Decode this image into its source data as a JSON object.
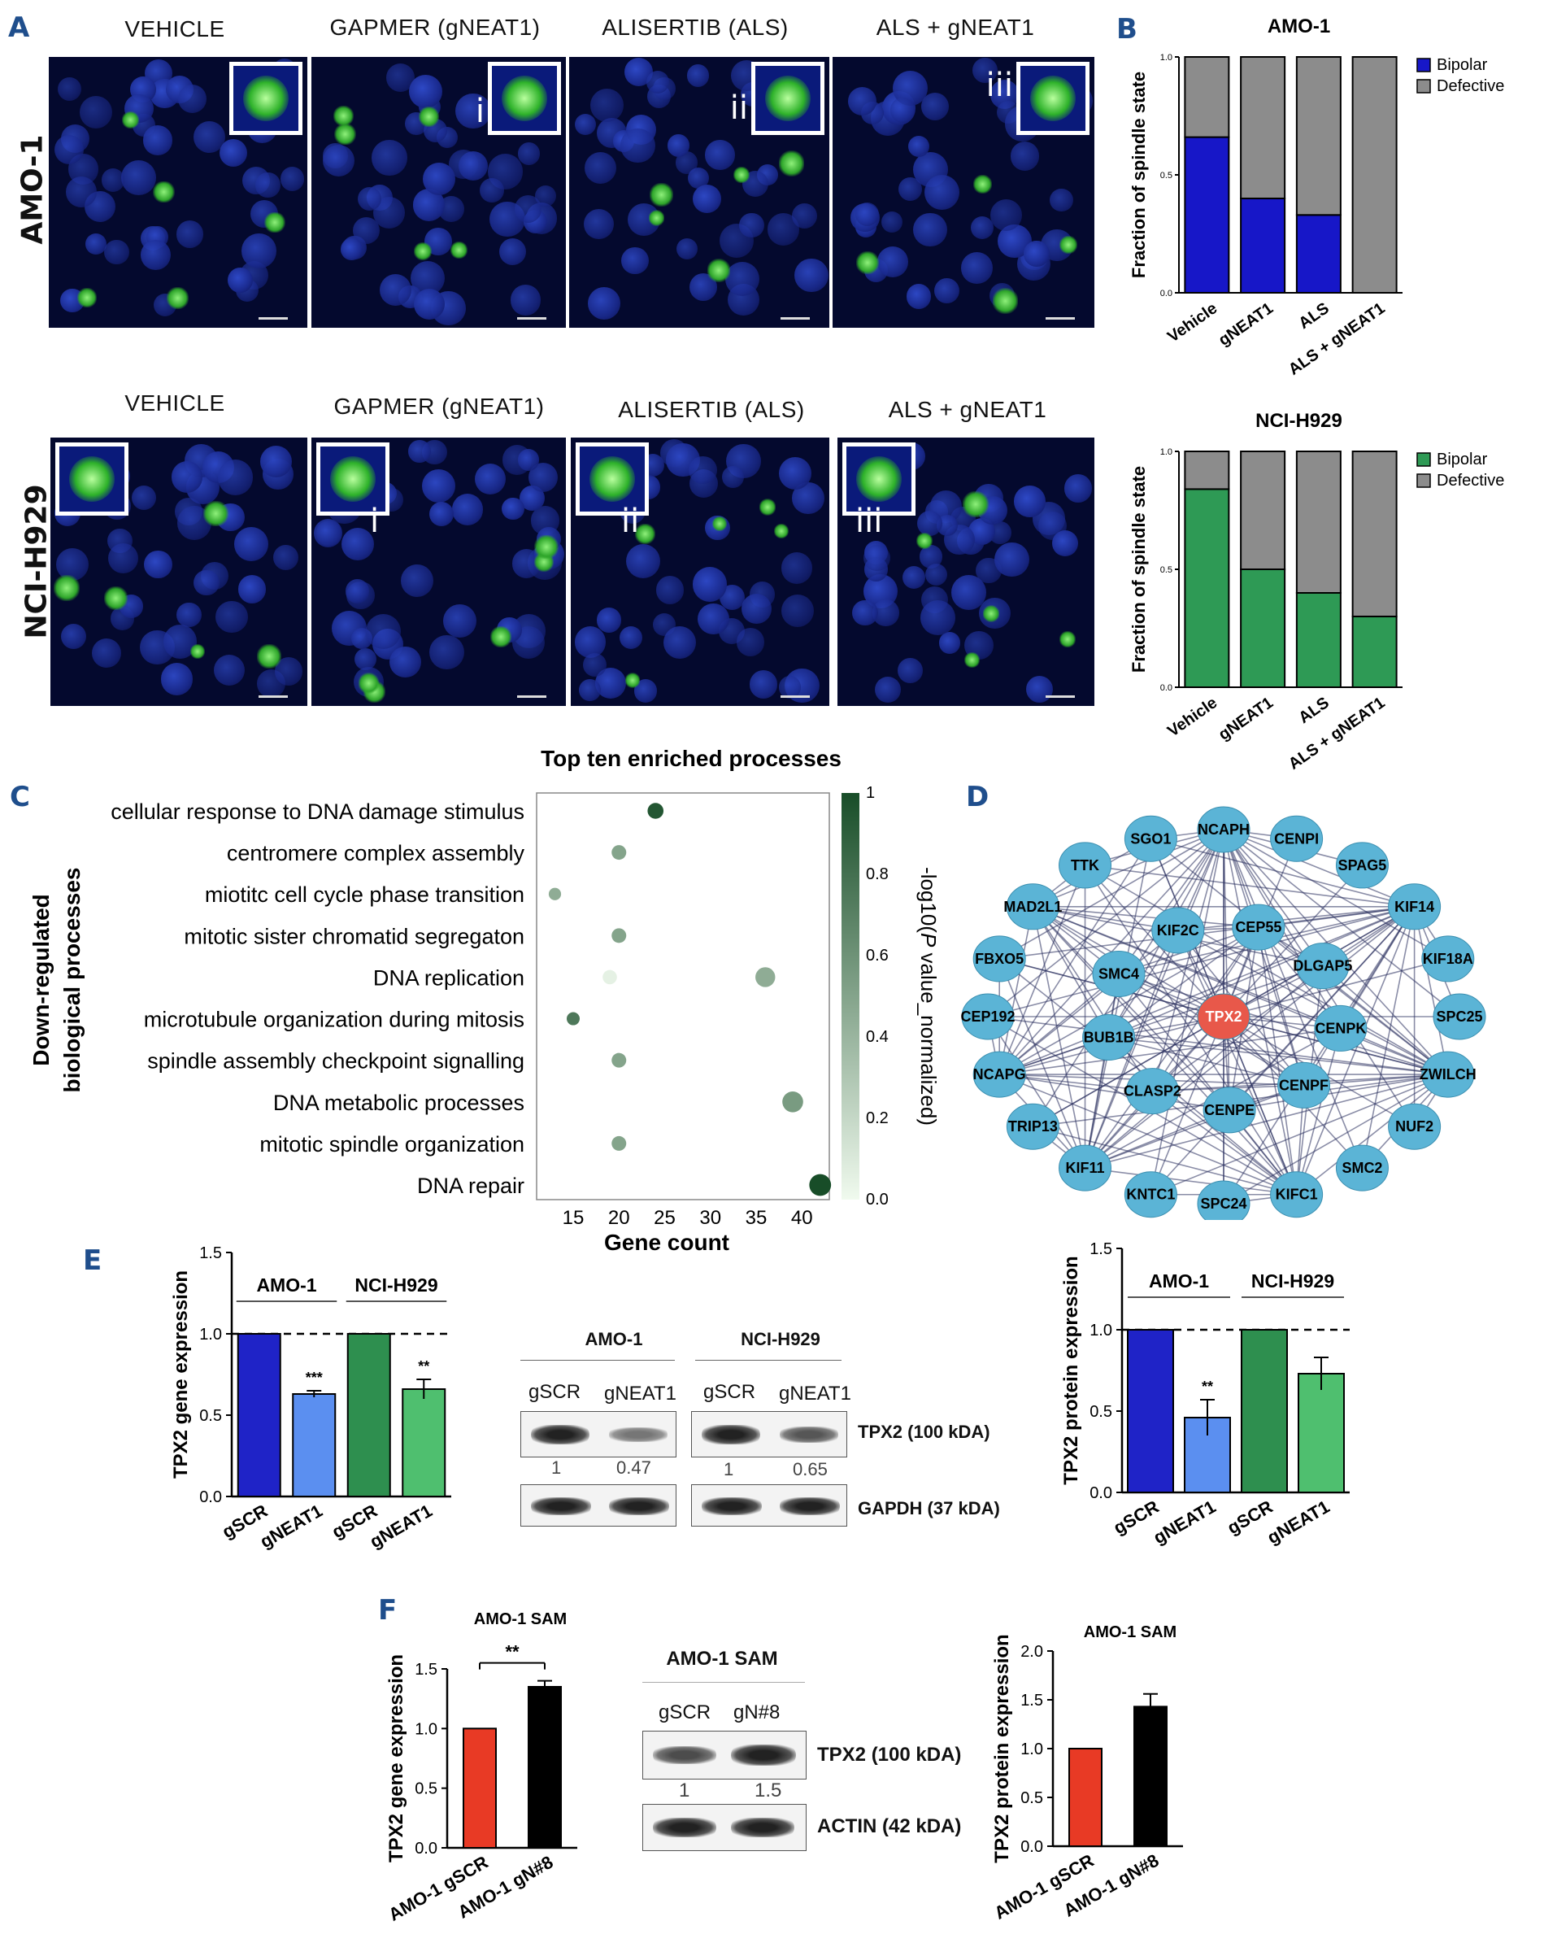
{
  "panelA": {
    "label": "A",
    "columns_top": [
      "VEHICLE",
      "GAPMER (gNEAT1)",
      "ALISERTIB (ALS)",
      "ALS + gNEAT1"
    ],
    "columns_bottom": [
      "VEHICLE",
      "GAPMER (gNEAT1)",
      "ALISERTIB (ALS)",
      "ALS + gNEAT1"
    ],
    "row_top": "AMO-1",
    "row_bottom": "NCI-H929",
    "romans": [
      "i",
      "ii",
      "iii"
    ]
  },
  "panelB": {
    "label": "B",
    "legend_bipolar": "Bipolar",
    "legend_defective": "Defective"
  },
  "panelC": {
    "label": "C",
    "ylabel_line1": "Down-regulated",
    "ylabel_line2": "biological processes"
  },
  "panelD": {
    "label": "D",
    "nodes": [
      "NCAPH",
      "CENPI",
      "SPAG5",
      "KIF14",
      "KIF18A",
      "SPC25",
      "ZWILCH",
      "NUF2",
      "SMC2",
      "KIFC1",
      "SPC24",
      "KNTC1",
      "KIF11",
      "TPX2",
      "TRIP13",
      "NCAPG",
      "CEP192",
      "FBXO5",
      "MAD2L1",
      "TTK",
      "SGO1",
      "CEP55",
      "DLGAP5",
      "CENPK",
      "CENPF",
      "CENPE",
      "CLASP2",
      "BUB1B",
      "SMC4",
      "KIF2C"
    ],
    "center_color": "#e8584a",
    "node_color": "#5bb4d6"
  },
  "panelE": {
    "label": "E",
    "blot_groups": [
      "AMO-1",
      "NCI-H929"
    ],
    "blot_lanes": [
      "gSCR",
      "gNEAT1",
      "gSCR",
      "gNEAT1"
    ],
    "blot_quant": [
      "1",
      "0.47",
      "1",
      "0.65"
    ],
    "blot_band1": "TPX2 (100 kDA)",
    "blot_band2": "GAPDH (37 kDA)"
  },
  "panelF": {
    "label": "F",
    "blot_title": "AMO-1 SAM",
    "blot_lanes": [
      "gSCR",
      "gN#8"
    ],
    "blot_quant": [
      "1",
      "1.5"
    ],
    "blot_band1": "TPX2 (100 kDA)",
    "blot_band2": "ACTIN (42 kDA)"
  },
  "chart_data": [
    {
      "id": "B-top",
      "type": "bar",
      "stacked": true,
      "title": "AMO-1",
      "ylabel": "Fraction of spindle state",
      "categories": [
        "Vehicle",
        "gNEAT1",
        "ALS",
        "ALS + gNEAT1"
      ],
      "yticks": [
        "0.0",
        "0.5",
        "1.0"
      ],
      "ylim": [
        0,
        1
      ],
      "series": [
        {
          "name": "Bipolar",
          "color": "#1717c8",
          "values": [
            0.66,
            0.4,
            0.33,
            0.0
          ]
        },
        {
          "name": "Defective",
          "color": "#8c8c8c",
          "values": [
            0.34,
            0.6,
            0.67,
            1.0
          ]
        }
      ],
      "legend": "top-right"
    },
    {
      "id": "B-bottom",
      "type": "bar",
      "stacked": true,
      "title": "NCI-H929",
      "ylabel": "Fraction of spindle state",
      "categories": [
        "Vehicle",
        "gNEAT1",
        "ALS",
        "ALS + gNEAT1"
      ],
      "yticks": [
        "0.0",
        "0.5",
        "1.0"
      ],
      "ylim": [
        0,
        1
      ],
      "series": [
        {
          "name": "Bipolar",
          "color": "#2e9a55",
          "values": [
            0.84,
            0.5,
            0.4,
            0.3
          ]
        },
        {
          "name": "Defective",
          "color": "#8c8c8c",
          "values": [
            0.16,
            0.5,
            0.6,
            0.7
          ]
        }
      ],
      "legend": "top-right"
    },
    {
      "id": "C",
      "type": "scatter",
      "title": "Top ten enriched processes",
      "xlabel": "Gene count",
      "colorbar_label_pre": "-log10(",
      "colorbar_label_italic": "P",
      "colorbar_label_post": " value_normalized)",
      "colorbar_ticks": [
        "0.0",
        "0.2",
        "0.4",
        "0.6",
        "0.8",
        "1"
      ],
      "xticks": [
        "15",
        "20",
        "25",
        "30",
        "35",
        "40"
      ],
      "xlim": [
        11,
        43
      ],
      "categories": [
        "cellular response to DNA damage stimulus",
        "centromere complex assembly",
        "miotitc cell cycle phase transition",
        "mitotic sister chromatid segregaton",
        "DNA replication",
        "microtubule organization during mitosis",
        "spindle assembly checkpoint signalling",
        "DNA metabolic processes",
        "mitotic spindle organization",
        "DNA repair"
      ],
      "x": [
        24,
        20,
        13,
        20,
        19,
        15,
        20,
        39,
        20,
        42
      ],
      "size": [
        24,
        20,
        13,
        20,
        19,
        15,
        20,
        39,
        20,
        42
      ],
      "color": [
        0.95,
        0.5,
        0.45,
        0.5,
        0.05,
        0.75,
        0.5,
        0.55,
        0.5,
        1.0
      ],
      "extra_points": [
        {
          "x": 36,
          "size": 36,
          "color": 0.45,
          "row": 4
        }
      ]
    },
    {
      "id": "E-gene",
      "type": "bar",
      "ylabel": "TPX2 gene expression",
      "categories": [
        "gSCR",
        "gNEAT1",
        "gSCR",
        "gNEAT1"
      ],
      "groups": [
        "AMO-1",
        "NCI-H929"
      ],
      "values": [
        1.0,
        0.63,
        1.0,
        0.66
      ],
      "errors": [
        0,
        0.02,
        0,
        0.06
      ],
      "colors": [
        "#1f23c7",
        "#5b8ff0",
        "#2e8f4f",
        "#4fbf6f"
      ],
      "significance": [
        "",
        "***",
        "",
        "**"
      ],
      "yticks": [
        "0.0",
        "0.5",
        "1.0",
        "1.5"
      ],
      "ylim": [
        0,
        1.5
      ],
      "reference_line": 1.0
    },
    {
      "id": "E-protein",
      "type": "bar",
      "ylabel": "TPX2 protein expression",
      "categories": [
        "gSCR",
        "gNEAT1",
        "gSCR",
        "gNEAT1"
      ],
      "groups": [
        "AMO-1",
        "NCI-H929"
      ],
      "values": [
        1.0,
        0.46,
        1.0,
        0.73
      ],
      "errors": [
        0,
        0.11,
        0,
        0.1
      ],
      "colors": [
        "#1f23c7",
        "#5b8ff0",
        "#2e8f4f",
        "#4fbf6f"
      ],
      "significance": [
        "",
        "**",
        "",
        ""
      ],
      "yticks": [
        "0.0",
        "0.5",
        "1.0",
        "1.5"
      ],
      "ylim": [
        0,
        1.5
      ],
      "reference_line": 1.0
    },
    {
      "id": "F-gene",
      "type": "bar",
      "title": "AMO-1 SAM",
      "ylabel": "TPX2 gene expression",
      "categories": [
        "AMO-1 gSCR",
        "AMO-1 gN#8"
      ],
      "values": [
        1.0,
        1.35
      ],
      "errors": [
        0,
        0.05
      ],
      "colors": [
        "#e83a25",
        "#000000"
      ],
      "bracket_label": "**",
      "yticks": [
        "0.0",
        "0.5",
        "1.0",
        "1.5"
      ],
      "ylim": [
        0,
        1.5
      ]
    },
    {
      "id": "F-protein",
      "type": "bar",
      "title": "AMO-1 SAM",
      "ylabel": "TPX2 protein expression",
      "categories": [
        "AMO-1 gSCR",
        "AMO-1 gN#8"
      ],
      "values": [
        1.0,
        1.43
      ],
      "errors": [
        0,
        0.13
      ],
      "colors": [
        "#e83a25",
        "#000000"
      ],
      "yticks": [
        "0.0",
        "0.5",
        "1.0",
        "1.5",
        "2.0"
      ],
      "ylim": [
        0,
        2.0
      ]
    }
  ]
}
